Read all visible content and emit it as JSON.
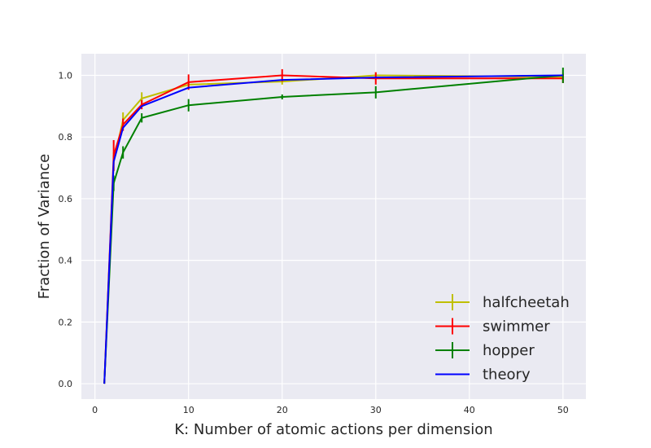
{
  "chart_data": {
    "type": "line",
    "title": "",
    "xlabel": "K: Number of atomic actions per dimension",
    "ylabel": "Fraction of Variance",
    "xlim": [
      -1.45,
      52.45
    ],
    "ylim": [
      -0.05,
      1.07
    ],
    "xticks": [
      0,
      10,
      20,
      30,
      40,
      50
    ],
    "yticks": [
      0.0,
      0.2,
      0.4,
      0.6,
      0.8,
      1.0
    ],
    "xtick_labels": [
      "0",
      "10",
      "20",
      "30",
      "40",
      "50"
    ],
    "ytick_labels": [
      "0.0",
      "0.2",
      "0.4",
      "0.6",
      "0.8",
      "1.0"
    ],
    "grid": true,
    "background": "#eaeaf2",
    "legend_position": "lower-right",
    "series": [
      {
        "name": "halfcheetah",
        "color": "#bfbf00",
        "errorbars": true,
        "x": [
          1,
          2,
          3,
          5,
          10,
          20,
          30,
          50
        ],
        "y": [
          0.0,
          0.72,
          0.855,
          0.925,
          0.97,
          0.98,
          1.0,
          0.995
        ],
        "yerr": [
          0.0,
          0.03,
          0.025,
          0.02,
          0.01,
          0.01,
          0.01,
          0.01
        ]
      },
      {
        "name": "swimmer",
        "color": "#ff0000",
        "errorbars": true,
        "x": [
          1,
          2,
          3,
          5,
          10,
          20,
          30,
          50
        ],
        "y": [
          0.0,
          0.74,
          0.84,
          0.905,
          0.978,
          1.0,
          0.99,
          0.99
        ],
        "yerr": [
          0.0,
          0.05,
          0.02,
          0.015,
          0.025,
          0.02,
          0.02,
          0.015
        ]
      },
      {
        "name": "hopper",
        "color": "#008000",
        "errorbars": true,
        "x": [
          1,
          2,
          3,
          5,
          10,
          20,
          30,
          50
        ],
        "y": [
          0.0,
          0.65,
          0.75,
          0.862,
          0.903,
          0.93,
          0.945,
          1.0
        ],
        "yerr": [
          0.0,
          0.025,
          0.02,
          0.015,
          0.02,
          0.008,
          0.02,
          0.025
        ]
      },
      {
        "name": "theory",
        "color": "#0000ff",
        "errorbars": false,
        "x": [
          1,
          2,
          3,
          5,
          10,
          20,
          30,
          50
        ],
        "y": [
          0.0,
          0.72,
          0.83,
          0.9,
          0.96,
          0.985,
          0.993,
          1.0
        ]
      }
    ]
  }
}
